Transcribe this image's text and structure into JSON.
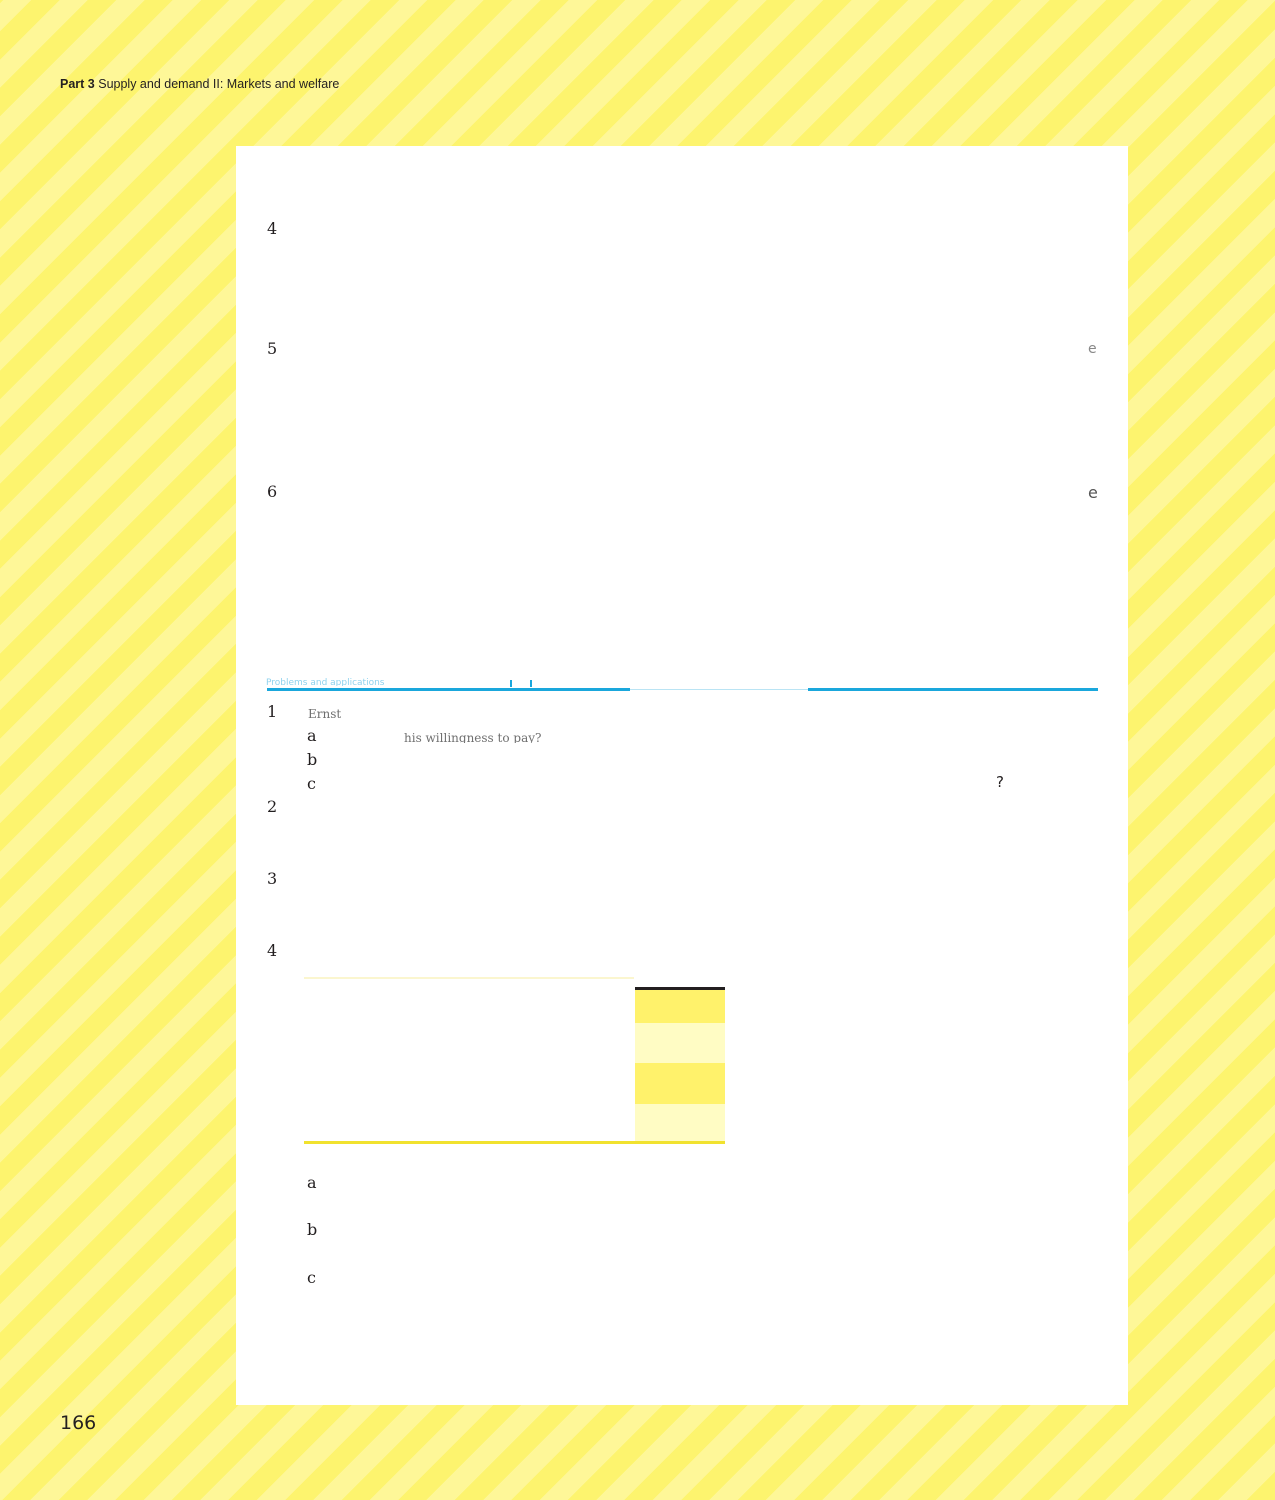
{
  "running_head": {
    "part_label": "Part 3",
    "title": "Supply and demand II: Markets and welfare"
  },
  "page_number": "166",
  "questions_top": [
    {
      "number": "4"
    },
    {
      "number": "5",
      "trailing_fragment": "e"
    },
    {
      "number": "6",
      "trailing_fragment": "e"
    }
  ],
  "problems": [
    {
      "number": "1",
      "lead_fragment": "Ernst",
      "parts": [
        {
          "letter": "a",
          "fragment": "his willingness to pay?"
        },
        {
          "letter": "b"
        },
        {
          "letter": "c",
          "trailing_fragment": "?"
        }
      ]
    },
    {
      "number": "2"
    },
    {
      "number": "3"
    },
    {
      "number": "4",
      "parts": [
        {
          "letter": "a"
        },
        {
          "letter": "b"
        },
        {
          "letter": "c"
        }
      ]
    }
  ],
  "colors": {
    "background_stripe_a": "#fdf46e",
    "background_stripe_b": "#fef798",
    "rule_blue": "#1aa7dc",
    "table_yellow": "#fff26b",
    "table_pale_yellow": "#fffcc4",
    "table_bottom_rule": "#f1e22e"
  }
}
